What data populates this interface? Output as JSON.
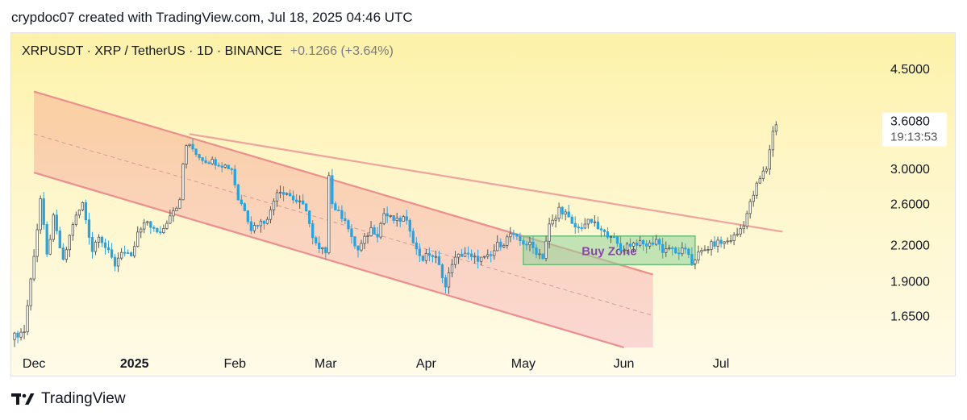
{
  "header": {
    "text": "crypdoc07 created with TradingView.com, Jul 18, 2025 04:46 UTC"
  },
  "footer": {
    "brand": "TradingView",
    "logo_icon": "tradingview-logo-icon"
  },
  "chart_data": {
    "type": "candlestick",
    "title": "XRPUSDT · XRP / TetherUS · 1D · BINANCE",
    "change_text": "+0.1266 (+3.64%)",
    "y_scale": "log",
    "ylim": [
      1.45,
      5.2
    ],
    "y_ticks": [
      "4.5000",
      "3.0000",
      "2.6000",
      "2.2000",
      "1.9000",
      "1.6500"
    ],
    "x_ticks": [
      {
        "label": "Dec",
        "date": "2024-12-01",
        "bold": false
      },
      {
        "label": "2025",
        "date": "2025-01-01",
        "bold": true
      },
      {
        "label": "Feb",
        "date": "2025-02-01",
        "bold": false
      },
      {
        "label": "Mar",
        "date": "2025-03-01",
        "bold": false
      },
      {
        "label": "Apr",
        "date": "2025-04-01",
        "bold": false
      },
      {
        "label": "May",
        "date": "2025-05-01",
        "bold": false
      },
      {
        "label": "Jun",
        "date": "2025-06-01",
        "bold": false
      },
      {
        "label": "Jul",
        "date": "2025-07-01",
        "bold": false
      }
    ],
    "xlim": [
      "2024-11-24",
      "2025-08-21"
    ],
    "last_price": {
      "value": "3.6080",
      "countdown": "19:13:53",
      "level": 3.608
    },
    "colors": {
      "up": "#ffffff",
      "up_border": "#555555",
      "down": "#29a3e0",
      "wick": "#555555",
      "channel": "#ec8e8e",
      "buy_zone": "#8fd49a",
      "buy_zone_text": "#8e44ad"
    },
    "anchors": [
      [
        "2024-11-25",
        1.52
      ],
      [
        "2024-11-28",
        1.55
      ],
      [
        "2024-12-02",
        2.35
      ],
      [
        "2024-12-03",
        2.65
      ],
      [
        "2024-12-05",
        2.1
      ],
      [
        "2024-12-07",
        2.45
      ],
      [
        "2024-12-10",
        2.05
      ],
      [
        "2024-12-13",
        2.4
      ],
      [
        "2024-12-16",
        2.6
      ],
      [
        "2024-12-19",
        2.15
      ],
      [
        "2024-12-21",
        2.3
      ],
      [
        "2024-12-23",
        2.18
      ],
      [
        "2024-12-26",
        2.03
      ],
      [
        "2024-12-28",
        2.15
      ],
      [
        "2024-12-31",
        2.08
      ],
      [
        "2025-01-02",
        2.3
      ],
      [
        "2025-01-05",
        2.42
      ],
      [
        "2025-01-08",
        2.3
      ],
      [
        "2025-01-10",
        2.35
      ],
      [
        "2025-01-12",
        2.5
      ],
      [
        "2025-01-15",
        2.62
      ],
      [
        "2025-01-16",
        3.05
      ],
      [
        "2025-01-17",
        3.3
      ],
      [
        "2025-01-19",
        3.25
      ],
      [
        "2025-01-21",
        3.15
      ],
      [
        "2025-01-23",
        3.1
      ],
      [
        "2025-01-26",
        3.08
      ],
      [
        "2025-01-28",
        3.05
      ],
      [
        "2025-01-31",
        3.0
      ],
      [
        "2025-02-02",
        2.65
      ],
      [
        "2025-02-04",
        2.55
      ],
      [
        "2025-02-06",
        2.35
      ],
      [
        "2025-02-08",
        2.4
      ],
      [
        "2025-02-10",
        2.42
      ],
      [
        "2025-02-12",
        2.52
      ],
      [
        "2025-02-14",
        2.75
      ],
      [
        "2025-02-17",
        2.72
      ],
      [
        "2025-02-19",
        2.65
      ],
      [
        "2025-02-21",
        2.6
      ],
      [
        "2025-02-23",
        2.55
      ],
      [
        "2025-02-25",
        2.25
      ],
      [
        "2025-02-27",
        2.15
      ],
      [
        "2025-03-01",
        2.15
      ],
      [
        "2025-03-02",
        2.95
      ],
      [
        "2025-03-03",
        2.6
      ],
      [
        "2025-03-05",
        2.5
      ],
      [
        "2025-03-07",
        2.45
      ],
      [
        "2025-03-09",
        2.25
      ],
      [
        "2025-03-11",
        2.15
      ],
      [
        "2025-03-13",
        2.25
      ],
      [
        "2025-03-15",
        2.35
      ],
      [
        "2025-03-17",
        2.3
      ],
      [
        "2025-03-19",
        2.5
      ],
      [
        "2025-03-21",
        2.45
      ],
      [
        "2025-03-23",
        2.42
      ],
      [
        "2025-03-25",
        2.45
      ],
      [
        "2025-03-27",
        2.35
      ],
      [
        "2025-03-29",
        2.15
      ],
      [
        "2025-03-31",
        2.08
      ],
      [
        "2025-04-02",
        2.12
      ],
      [
        "2025-04-04",
        2.08
      ],
      [
        "2025-04-06",
        1.95
      ],
      [
        "2025-04-07",
        1.85
      ],
      [
        "2025-04-09",
        2.05
      ],
      [
        "2025-04-11",
        2.1
      ],
      [
        "2025-04-13",
        2.13
      ],
      [
        "2025-04-15",
        2.08
      ],
      [
        "2025-04-17",
        2.08
      ],
      [
        "2025-04-19",
        2.08
      ],
      [
        "2025-04-21",
        2.1
      ],
      [
        "2025-04-23",
        2.2
      ],
      [
        "2025-04-25",
        2.22
      ],
      [
        "2025-04-27",
        2.3
      ],
      [
        "2025-04-29",
        2.25
      ],
      [
        "2025-05-01",
        2.22
      ],
      [
        "2025-05-03",
        2.2
      ],
      [
        "2025-05-05",
        2.14
      ],
      [
        "2025-05-07",
        2.1
      ],
      [
        "2025-05-09",
        2.38
      ],
      [
        "2025-05-11",
        2.45
      ],
      [
        "2025-05-12",
        2.55
      ],
      [
        "2025-05-14",
        2.5
      ],
      [
        "2025-05-16",
        2.38
      ],
      [
        "2025-05-18",
        2.35
      ],
      [
        "2025-05-20",
        2.4
      ],
      [
        "2025-05-22",
        2.42
      ],
      [
        "2025-05-24",
        2.35
      ],
      [
        "2025-05-26",
        2.3
      ],
      [
        "2025-05-28",
        2.3
      ],
      [
        "2025-05-31",
        2.15
      ],
      [
        "2025-06-02",
        2.2
      ],
      [
        "2025-06-05",
        2.22
      ],
      [
        "2025-06-07",
        2.2
      ],
      [
        "2025-06-09",
        2.2
      ],
      [
        "2025-06-11",
        2.25
      ],
      [
        "2025-06-13",
        2.15
      ],
      [
        "2025-06-15",
        2.18
      ],
      [
        "2025-06-17",
        2.12
      ],
      [
        "2025-06-19",
        2.15
      ],
      [
        "2025-06-21",
        2.12
      ],
      [
        "2025-06-22",
        2.05
      ],
      [
        "2025-06-24",
        2.12
      ],
      [
        "2025-06-26",
        2.15
      ],
      [
        "2025-06-28",
        2.2
      ],
      [
        "2025-06-30",
        2.22
      ],
      [
        "2025-07-02",
        2.22
      ],
      [
        "2025-07-04",
        2.25
      ],
      [
        "2025-07-06",
        2.3
      ],
      [
        "2025-07-08",
        2.4
      ],
      [
        "2025-07-10",
        2.6
      ],
      [
        "2025-07-12",
        2.8
      ],
      [
        "2025-07-14",
        2.95
      ],
      [
        "2025-07-15",
        3.0
      ],
      [
        "2025-07-16",
        3.25
      ],
      [
        "2025-07-17",
        3.48
      ],
      [
        "2025-07-18",
        3.608
      ]
    ],
    "drawings": {
      "channel_upper": [
        [
          "2024-12-01",
          4.1
        ],
        [
          "2025-06-10",
          1.95
        ]
      ],
      "channel_lower": [
        [
          "2024-12-01",
          2.95
        ],
        [
          "2025-06-10",
          1.4
        ]
      ],
      "channel_mid": [
        [
          "2024-12-01",
          3.45
        ],
        [
          "2025-06-10",
          1.65
        ]
      ],
      "resistance": [
        [
          "2025-01-18",
          3.45
        ],
        [
          "2025-07-20",
          2.32
        ]
      ],
      "channel_fill_end": "2025-06-10",
      "buy_zone": {
        "label": "Buy Zone",
        "x0": "2025-05-01",
        "x1": "2025-06-23",
        "y_low": 2.03,
        "y_high": 2.28
      }
    }
  }
}
